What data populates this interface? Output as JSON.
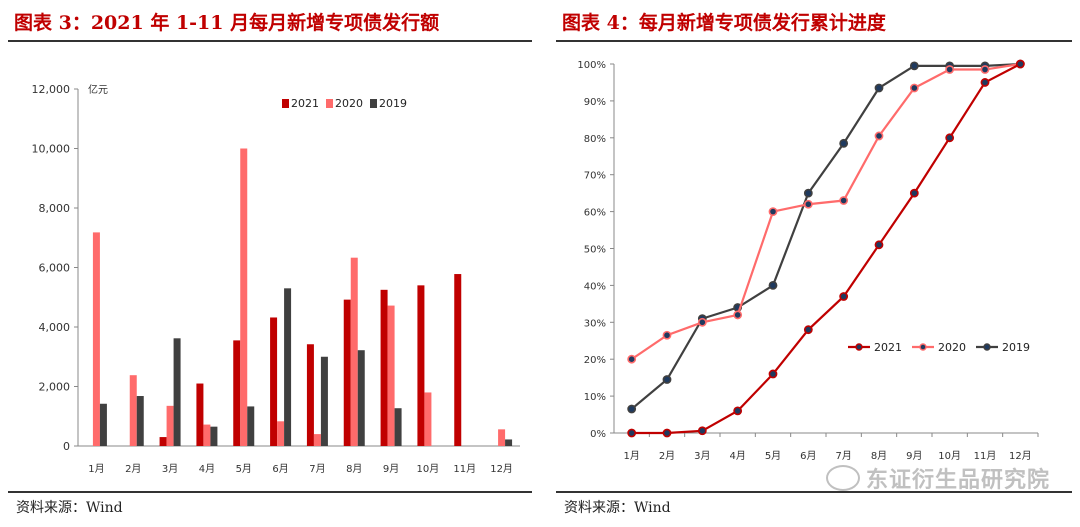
{
  "left_panel": {
    "title": "图表 3：2021 年 1-11 月每月新增专项债发行额",
    "source": "资料来源：Wind"
  },
  "right_panel": {
    "title": "图表 4：每月新增专项债发行累计进度",
    "source": "资料来源：Wind"
  },
  "watermark": "东证衍生品研究院",
  "colors": {
    "s2021": "#c00000",
    "s2020": "#ff6b6b",
    "s2019": "#404040"
  },
  "chart_data": [
    {
      "type": "bar",
      "title": "",
      "unit": "亿元",
      "categories": [
        "1月",
        "2月",
        "3月",
        "4月",
        "5月",
        "6月",
        "7月",
        "8月",
        "9月",
        "10月",
        "11月",
        "12月"
      ],
      "ylim": [
        0,
        12000
      ],
      "yticks": [
        "0",
        "2,000",
        "4,000",
        "6,000",
        "8,000",
        "10,000",
        "12,000"
      ],
      "ytick_values": [
        0,
        2000,
        4000,
        6000,
        8000,
        10000,
        12000
      ],
      "legend": "top-right",
      "series": [
        {
          "name": "2021",
          "color": "#c00000",
          "values": [
            0,
            0,
            300,
            2100,
            3550,
            4320,
            3420,
            4920,
            5250,
            5400,
            5780,
            null
          ]
        },
        {
          "name": "2020",
          "color": "#ff6b6b",
          "values": [
            7180,
            2380,
            1350,
            720,
            10000,
            830,
            400,
            6330,
            4720,
            1800,
            0,
            560
          ]
        },
        {
          "name": "2019",
          "color": "#404040",
          "values": [
            1420,
            1680,
            3620,
            650,
            1330,
            5300,
            3000,
            3220,
            1270,
            0,
            0,
            220
          ]
        }
      ]
    },
    {
      "type": "line",
      "title": "",
      "categories": [
        "1月",
        "2月",
        "3月",
        "4月",
        "5月",
        "6月",
        "7月",
        "8月",
        "9月",
        "10月",
        "11月",
        "12月"
      ],
      "ylim": [
        0,
        100
      ],
      "yticks": [
        "0%",
        "10%",
        "20%",
        "30%",
        "40%",
        "50%",
        "60%",
        "70%",
        "80%",
        "90%",
        "100%"
      ],
      "ytick_values": [
        0,
        10,
        20,
        30,
        40,
        50,
        60,
        70,
        80,
        90,
        100
      ],
      "legend": "center-right",
      "series": [
        {
          "name": "2021",
          "color": "#c00000",
          "values": [
            0,
            0,
            0.6,
            6,
            16,
            28,
            37,
            51,
            65,
            80,
            95,
            100
          ]
        },
        {
          "name": "2020",
          "color": "#ff6b6b",
          "values": [
            20,
            26.5,
            30,
            32,
            60,
            62,
            63,
            80.5,
            93.5,
            98.5,
            98.5,
            100
          ]
        },
        {
          "name": "2019",
          "color": "#404040",
          "values": [
            6.5,
            14.5,
            31,
            34,
            40,
            65,
            78.5,
            93.5,
            99.5,
            99.5,
            99.5,
            100
          ]
        }
      ]
    }
  ]
}
